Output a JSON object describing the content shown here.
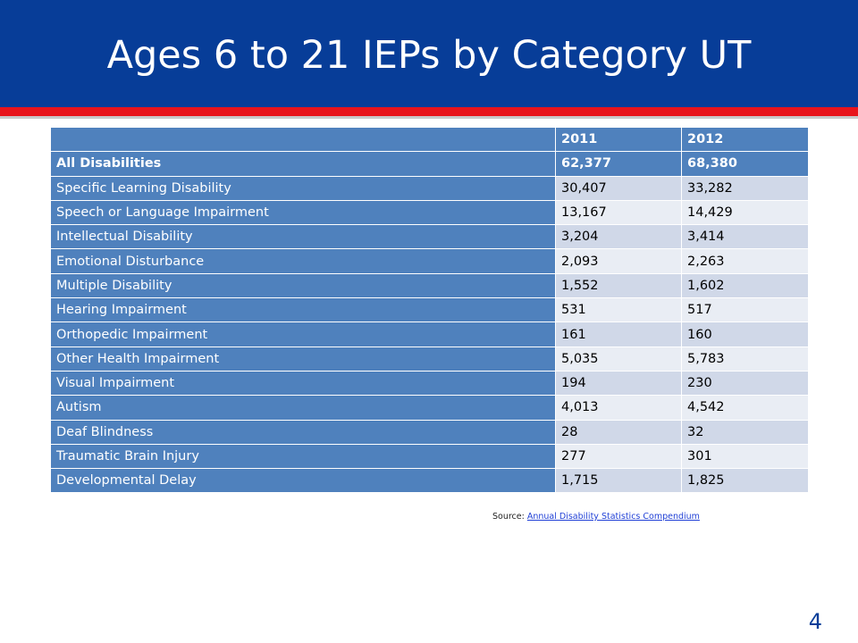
{
  "slide": {
    "title": "Ages 6 to 21 IEPs by Category UT",
    "page_number": "4"
  },
  "table": {
    "header": [
      "",
      "2011",
      "2012"
    ],
    "total": {
      "label": "All Disabilities",
      "v2011": "62,377",
      "v2012": "68,380"
    },
    "rows": [
      {
        "label": "Specific Learning Disability",
        "v2011": "30,407",
        "v2012": "33,282"
      },
      {
        "label": "Speech or Language Impairment",
        "v2011": "13,167",
        "v2012": "14,429"
      },
      {
        "label": "Intellectual Disability",
        "v2011": "3,204",
        "v2012": "3,414"
      },
      {
        "label": "Emotional Disturbance",
        "v2011": "2,093",
        "v2012": "2,263"
      },
      {
        "label": "Multiple Disability",
        "v2011": "1,552",
        "v2012": "1,602"
      },
      {
        "label": "Hearing Impairment",
        "v2011": "531",
        "v2012": "517"
      },
      {
        "label": "Orthopedic Impairment",
        "v2011": "161",
        "v2012": "160"
      },
      {
        "label": "Other Health Impairment",
        "v2011": "5,035",
        "v2012": "5,783"
      },
      {
        "label": "Visual Impairment",
        "v2011": "194",
        "v2012": "230"
      },
      {
        "label": "Autism",
        "v2011": "4,013",
        "v2012": "4,542"
      },
      {
        "label": "Deaf Blindness",
        "v2011": "28",
        "v2012": "32"
      },
      {
        "label": "Traumatic Brain Injury",
        "v2011": "277",
        "v2012": "301"
      },
      {
        "label": "Developmental Delay",
        "v2011": "1,715",
        "v2012": "1,825"
      }
    ]
  },
  "source": {
    "prefix": "Source: ",
    "link_text": "Annual Disability Statistics Compendium"
  },
  "colors": {
    "header_band": "#073D98",
    "accent_stripe": "#E8141B",
    "table_header": "#4F81BD",
    "row_band_1": "#D0D8E8",
    "row_band_2": "#E9EDF4"
  }
}
